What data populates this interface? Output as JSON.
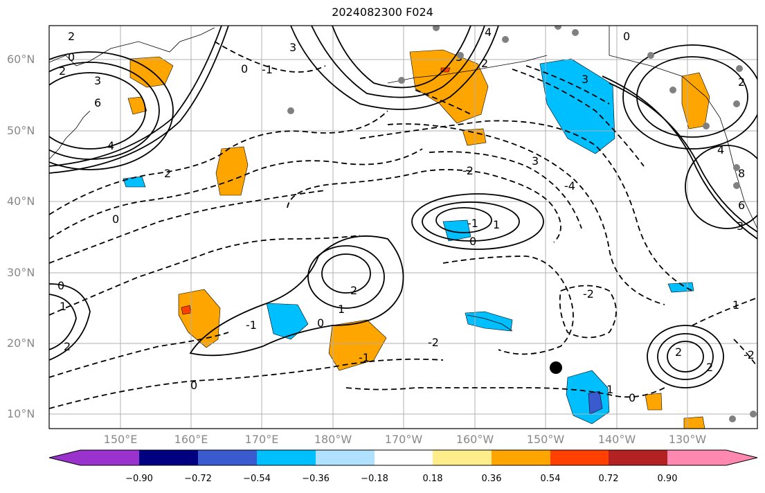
{
  "title": "2024082300 F024",
  "map": {
    "lat_ticks": [
      "60°N",
      "50°N",
      "40°N",
      "30°N",
      "20°N",
      "10°N"
    ],
    "lon_ticks": [
      "150°E",
      "160°E",
      "170°E",
      "180°W",
      "170°W",
      "160°W",
      "150°W",
      "140°W",
      "130°W"
    ],
    "contour_labels": [
      "2",
      "0",
      "2",
      "3",
      "6",
      "4",
      "0",
      "3",
      "2",
      "0",
      "-1",
      "0",
      "3",
      "2",
      "4",
      "3",
      "-2",
      "-4",
      "3",
      "0",
      "2",
      "-1",
      "0",
      "1",
      "2",
      "1",
      "0",
      "-1",
      "-2",
      "1",
      "0",
      "2",
      "0",
      "-1",
      "2",
      "-2",
      "4",
      "8",
      "6",
      "3",
      "1",
      "-2",
      "2",
      "1"
    ],
    "marker": "black-dot"
  },
  "colorbar": {
    "ticks": [
      "−0.90",
      "−0.72",
      "−0.54",
      "−0.36",
      "−0.18",
      "0.18",
      "0.36",
      "0.54",
      "0.72",
      "0.90"
    ],
    "colors": [
      "#9a32cd",
      "#000080",
      "#3a5bd0",
      "#00bfff",
      "#b0e2ff",
      "#ffffff",
      "#ffec8b",
      "#ffa500",
      "#ff4000",
      "#b22222",
      "#ff88b0"
    ]
  }
}
